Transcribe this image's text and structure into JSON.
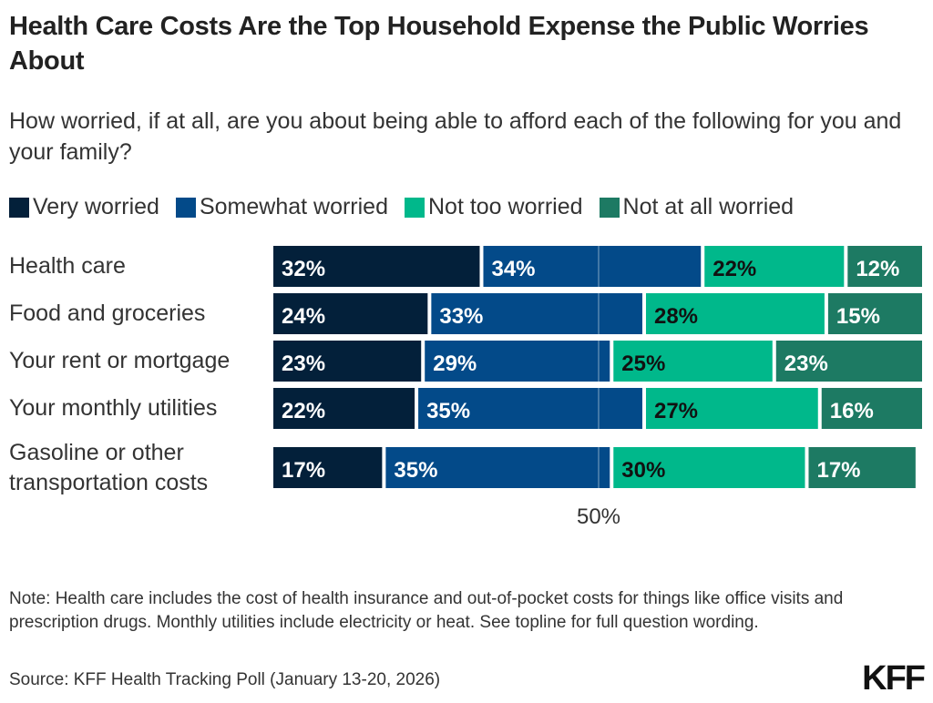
{
  "chart_data": {
    "type": "bar",
    "orientation": "horizontal",
    "stacked": true,
    "title": "Health Care Costs Are the Top Household Expense the Public Worries About",
    "subtitle": "How worried, if at all, are you about being able to afford each of the following for you and your family?",
    "categories": [
      "Health care",
      "Food and groceries",
      "Your rent or mortgage",
      "Your monthly utilities",
      "Gasoline or other transportation costs"
    ],
    "series": [
      {
        "name": "Very worried",
        "color": "#03203a",
        "label_color": "#ffffff",
        "values": [
          32,
          24,
          23,
          22,
          17
        ]
      },
      {
        "name": "Somewhat worried",
        "color": "#034a89",
        "label_color": "#ffffff",
        "values": [
          34,
          33,
          29,
          35,
          35
        ]
      },
      {
        "name": "Not too worried",
        "color": "#00b88b",
        "label_color": "#111111",
        "values": [
          22,
          28,
          25,
          27,
          30
        ]
      },
      {
        "name": "Not at all worried",
        "color": "#1d7a63",
        "label_color": "#ffffff",
        "values": [
          12,
          15,
          23,
          16,
          17
        ]
      }
    ],
    "reference_line": {
      "value": 50,
      "label": "50%"
    },
    "xlim": [
      0,
      100
    ],
    "legend": "top",
    "grid": false
  },
  "note": "Note: Health care includes the cost of health insurance and out-of-pocket costs for things like office visits and prescription drugs. Monthly utilities include electricity or heat. See topline for full question wording.",
  "source": "Source: KFF Health Tracking Poll (January 13-20, 2026)",
  "logo": "KFF"
}
